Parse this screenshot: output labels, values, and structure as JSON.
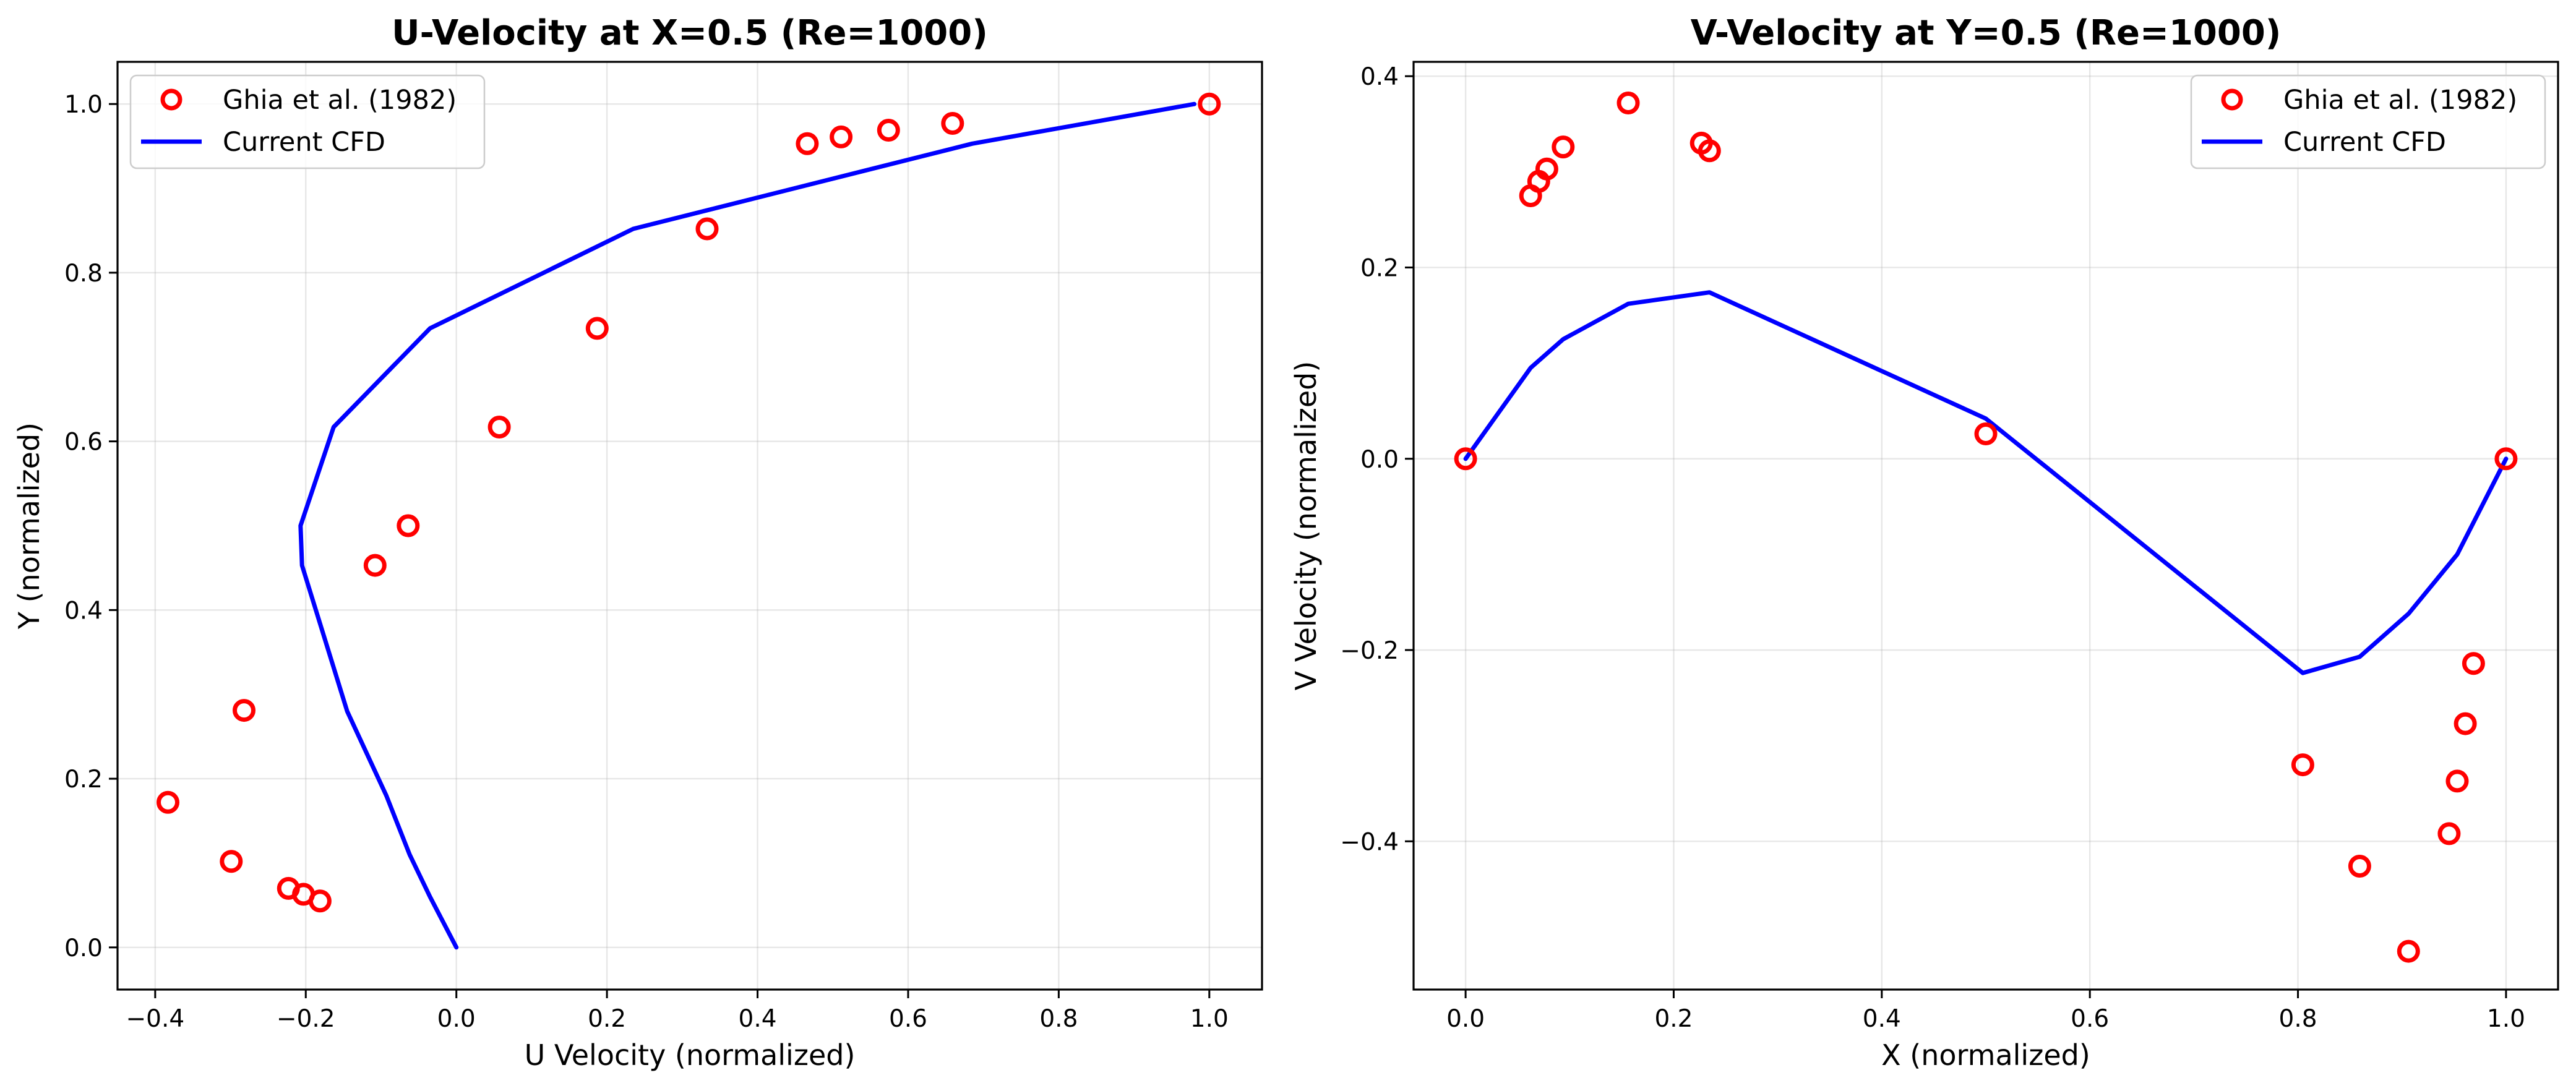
{
  "chart_data": [
    {
      "type": "scatter",
      "title": "U-Velocity at X=0.5 (Re=1000)",
      "xlabel": "U Velocity (normalized)",
      "ylabel": "Y (normalized)",
      "xlim": [
        -0.45,
        1.07
      ],
      "ylim": [
        -0.05,
        1.05
      ],
      "xticks": [
        -0.4,
        -0.2,
        0.0,
        0.2,
        0.4,
        0.6,
        0.8,
        1.0
      ],
      "xtick_labels": [
        "−0.4",
        "−0.2",
        "0.0",
        "0.2",
        "0.4",
        "0.6",
        "0.8",
        "1.0"
      ],
      "yticks": [
        0.0,
        0.2,
        0.4,
        0.6,
        0.8,
        1.0
      ],
      "ytick_labels": [
        "0.0",
        "0.2",
        "0.4",
        "0.6",
        "0.8",
        "1.0"
      ],
      "grid": true,
      "legend_position": "upper-left",
      "series": [
        {
          "name": "Ghia et al. (1982)",
          "kind": "markers",
          "color": "#ff0000",
          "x": [
            -0.383,
            -0.299,
            -0.282,
            -0.223,
            -0.203,
            -0.181,
            -0.108,
            -0.064,
            0.057,
            0.187,
            0.333,
            0.466,
            0.511,
            0.574,
            0.659,
            1.0
          ],
          "y": [
            0.172,
            0.102,
            0.281,
            0.07,
            0.063,
            0.055,
            0.453,
            0.5,
            0.617,
            0.734,
            0.852,
            0.953,
            0.961,
            0.969,
            0.977,
            1.0
          ]
        },
        {
          "name": "Current CFD",
          "kind": "line",
          "color": "#0000ff",
          "x": [
            0.0,
            -0.035,
            -0.062,
            -0.093,
            -0.145,
            -0.205,
            -0.207,
            -0.163,
            -0.035,
            0.235,
            0.685,
            0.98
          ],
          "y": [
            0.0,
            0.06,
            0.11,
            0.18,
            0.28,
            0.453,
            0.5,
            0.617,
            0.734,
            0.852,
            0.953,
            1.0
          ]
        }
      ]
    },
    {
      "type": "scatter",
      "title": "V-Velocity at Y=0.5 (Re=1000)",
      "xlabel": "X (normalized)",
      "ylabel": "V Velocity (normalized)",
      "xlim": [
        -0.05,
        1.05
      ],
      "ylim": [
        -0.555,
        0.415
      ],
      "xticks": [
        0.0,
        0.2,
        0.4,
        0.6,
        0.8,
        1.0
      ],
      "xtick_labels": [
        "0.0",
        "0.2",
        "0.4",
        "0.6",
        "0.8",
        "1.0"
      ],
      "yticks": [
        -0.4,
        -0.2,
        0.0,
        0.2,
        0.4
      ],
      "ytick_labels": [
        "−0.4",
        "−0.2",
        "0.0",
        "0.2",
        "0.4"
      ],
      "grid": true,
      "legend_position": "upper-right",
      "series": [
        {
          "name": "Ghia et al. (1982)",
          "kind": "markers",
          "color": "#ff0000",
          "x": [
            0.0,
            0.0625,
            0.0703,
            0.0781,
            0.0938,
            0.1563,
            0.2266,
            0.2344,
            0.5,
            0.8047,
            0.8594,
            0.9063,
            0.9453,
            0.9531,
            0.9609,
            0.9688,
            1.0
          ],
          "y": [
            0.0,
            0.275,
            0.29,
            0.303,
            0.326,
            0.372,
            0.33,
            0.322,
            0.026,
            -0.32,
            -0.426,
            -0.515,
            -0.392,
            -0.337,
            -0.277,
            -0.214,
            0.0
          ]
        },
        {
          "name": "Current CFD",
          "kind": "line",
          "color": "#0000ff",
          "x": [
            0.0,
            0.0625,
            0.0938,
            0.1563,
            0.2344,
            0.5,
            0.8047,
            0.8594,
            0.9063,
            0.9531,
            1.0
          ],
          "y": [
            0.0,
            0.095,
            0.125,
            0.162,
            0.174,
            0.042,
            -0.224,
            -0.207,
            -0.162,
            -0.1,
            0.0
          ]
        }
      ]
    }
  ]
}
